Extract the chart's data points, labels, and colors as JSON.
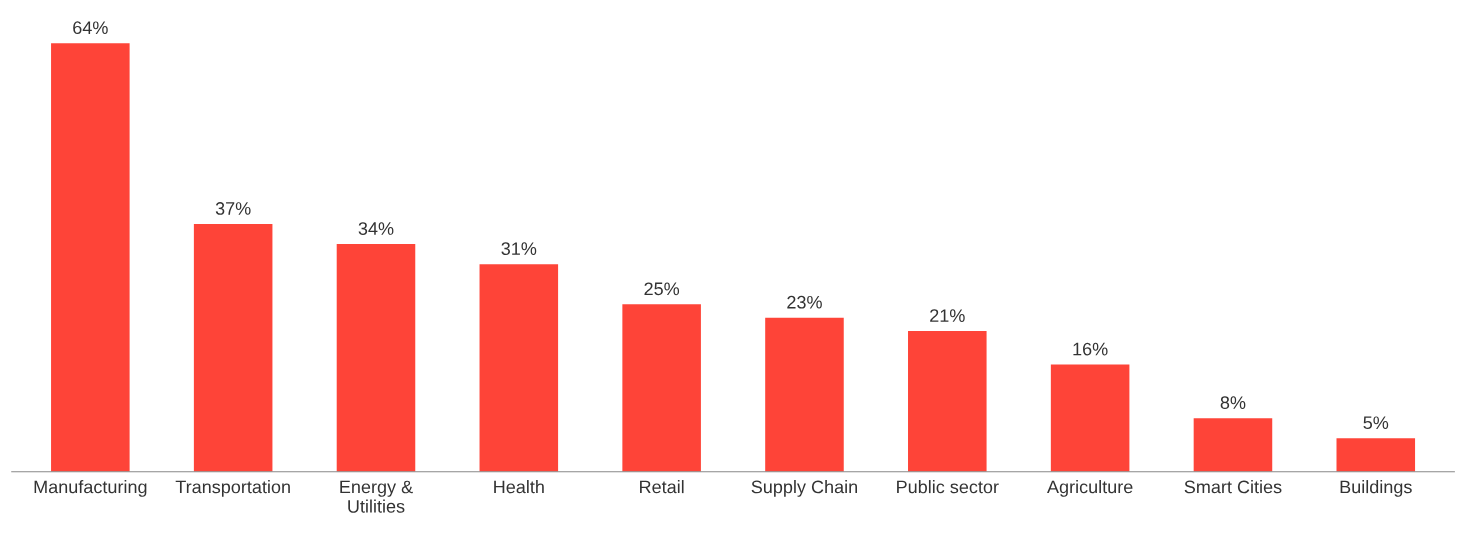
{
  "chart_data": {
    "type": "bar",
    "categories": [
      "Manufacturing",
      "Transportation",
      "Energy &\nUtilities",
      "Health",
      "Retail",
      "Supply Chain",
      "Public sector",
      "Agriculture",
      "Smart Cities",
      "Buildings"
    ],
    "values": [
      64,
      37,
      34,
      31,
      25,
      23,
      21,
      16,
      8,
      5
    ],
    "value_labels": [
      "64%",
      "37%",
      "34%",
      "31%",
      "25%",
      "23%",
      "21%",
      "16%",
      "8%",
      "5%"
    ],
    "color": "#fe4438",
    "grid": false,
    "legend": false
  }
}
